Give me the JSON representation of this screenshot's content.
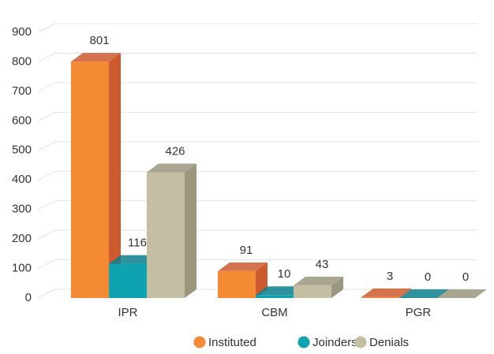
{
  "chart_data": {
    "type": "bar3d",
    "categories": [
      "IPR",
      "CBM",
      "PGR"
    ],
    "series": [
      {
        "name": "Instituted",
        "color": "#f58a34",
        "side": "#cc5a2e",
        "values": [
          801,
          91,
          3
        ]
      },
      {
        "name": "Joinders",
        "color": "#0fa3b1",
        "side": "#0b7f8b",
        "values": [
          116,
          10,
          0
        ]
      },
      {
        "name": "Denials",
        "color": "#c4bfa2",
        "side": "#9b977f",
        "values": [
          426,
          43,
          0
        ]
      }
    ],
    "ylim": [
      0,
      900
    ],
    "yticks": [
      0,
      100,
      200,
      300,
      400,
      500,
      600,
      700,
      800,
      900
    ],
    "grid": true
  }
}
